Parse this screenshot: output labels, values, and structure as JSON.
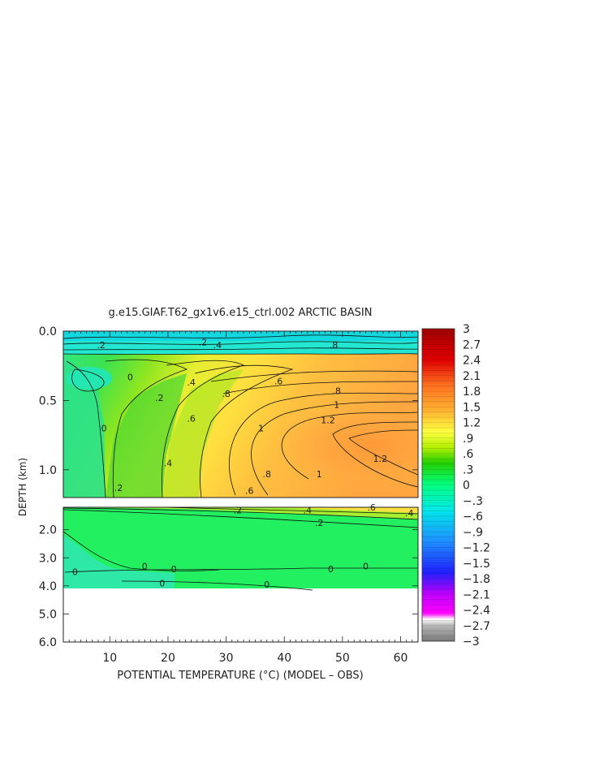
{
  "chart_data": {
    "type": "heatmap",
    "title": "g.e15.GIAF.T62_gx1v6.e15_ctrl.002 ARCTIC BASIN",
    "xlabel": "POTENTIAL TEMPERATURE (°C) (MODEL – OBS)",
    "ylabel": "DEPTH (km)",
    "xlim": [
      2,
      63
    ],
    "x_ticks": [
      10,
      20,
      30,
      40,
      50,
      60
    ],
    "x_tick_labels": [
      "10",
      "20",
      "30",
      "40",
      "50",
      "60"
    ],
    "upper_panel": {
      "ylim": [
        0,
        1.2
      ],
      "y_ticks": [
        0.0,
        0.5,
        1.0
      ],
      "y_tick_labels": [
        "0.0",
        "0.5",
        "1.0"
      ]
    },
    "lower_panel": {
      "ylim": [
        1.2,
        6.0
      ],
      "y_ticks": [
        2.0,
        3.0,
        4.0,
        5.0,
        6.0
      ],
      "y_tick_labels": [
        "2.0",
        "3.0",
        "4.0",
        "5.0",
        "6.0"
      ],
      "data_bottom_km": 4.1
    },
    "colorbar": {
      "min": -3,
      "max": 3,
      "step": 0.1,
      "labels": [
        "3",
        "2.7",
        "2.4",
        "2.1",
        "1.8",
        "1.5",
        "1.2",
        ".9",
        ".6",
        ".3",
        "0",
        "-.3",
        "-.6",
        "-.9",
        "-1.2",
        "-1.5",
        "-1.8",
        "-2.1",
        "-2.4",
        "-2.7",
        "-3"
      ],
      "colors": [
        "#7a7a7a",
        "#b6b6b6",
        "#ff00ff",
        "#2020ff",
        "#1e90ff",
        "#00e8e8",
        "#00ff80",
        "#24d000",
        "#b4f000",
        "#ffff40",
        "#ffb030",
        "#ff7020",
        "#e00000",
        "#a00000"
      ]
    },
    "contour_labels": [
      {
        "text": "0",
        "x": 9,
        "z": 0.7
      },
      {
        "text": "0",
        "x": 13.5,
        "z": 0.33
      },
      {
        "text": ".2",
        "x": 11.5,
        "z": 1.13
      },
      {
        "text": ".2",
        "x": 18.5,
        "z": 0.48
      },
      {
        "text": ".2",
        "x": 8.5,
        "z": 0.1
      },
      {
        "text": ".2",
        "x": 26,
        "z": 0.08
      },
      {
        "text": ".4",
        "x": 20,
        "z": 0.95
      },
      {
        "text": ".4",
        "x": 24,
        "z": 0.37
      },
      {
        "text": ".4",
        "x": 28.5,
        "z": 0.1
      },
      {
        "text": ".6",
        "x": 24,
        "z": 0.63
      },
      {
        "text": ".6",
        "x": 39,
        "z": 0.36
      },
      {
        "text": ".6",
        "x": 34,
        "z": 1.15
      },
      {
        "text": ".8",
        "x": 30,
        "z": 0.45
      },
      {
        "text": ".8",
        "x": 37,
        "z": 1.03
      },
      {
        "text": ".8",
        "x": 49,
        "z": 0.43
      },
      {
        "text": ".8",
        "x": 48.5,
        "z": 0.1
      },
      {
        "text": "1",
        "x": 36,
        "z": 0.7
      },
      {
        "text": "1",
        "x": 49,
        "z": 0.53
      },
      {
        "text": "1",
        "x": 46,
        "z": 1.03
      },
      {
        "text": "1.2",
        "x": 47.5,
        "z": 0.64
      },
      {
        "text": "1.2",
        "x": 56.5,
        "z": 0.92
      },
      {
        "text": ".2",
        "x": 32,
        "z": 1.3
      },
      {
        "text": ".2",
        "x": 46,
        "z": 1.75
      },
      {
        "text": ".4",
        "x": 44,
        "z": 1.3
      },
      {
        "text": ".6",
        "x": 55,
        "z": 1.2
      },
      {
        "text": ".4",
        "x": 61.5,
        "z": 1.4
      },
      {
        "text": "0",
        "x": 4,
        "z": 3.5
      },
      {
        "text": "0",
        "x": 16,
        "z": 3.3
      },
      {
        "text": "0",
        "x": 21,
        "z": 3.4
      },
      {
        "text": "0",
        "x": 19,
        "z": 3.9
      },
      {
        "text": "0",
        "x": 37,
        "z": 3.95
      },
      {
        "text": "0",
        "x": 48,
        "z": 3.4
      },
      {
        "text": "0",
        "x": 54,
        "z": 3.3
      }
    ]
  }
}
